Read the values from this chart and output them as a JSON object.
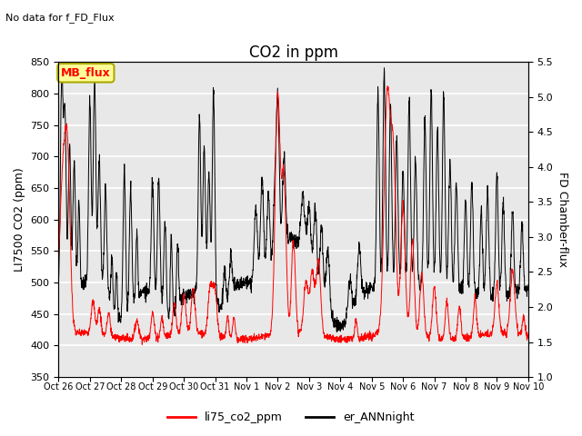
{
  "title": "CO2 in ppm",
  "subtitle": "No data for f_FD_Flux",
  "ylabel_left": "LI7500 CO2 (ppm)",
  "ylabel_right": "FD Chamber-flux",
  "ylim_left": [
    350,
    850
  ],
  "ylim_right": [
    1.0,
    5.5
  ],
  "yticks_left": [
    350,
    400,
    450,
    500,
    550,
    600,
    650,
    700,
    750,
    800,
    850
  ],
  "yticks_right": [
    1.0,
    1.5,
    2.0,
    2.5,
    3.0,
    3.5,
    4.0,
    4.5,
    5.0,
    5.5
  ],
  "x_tick_labels": [
    "Oct 26",
    "Oct 27",
    "Oct 28",
    "Oct 29",
    "Oct 30",
    "Oct 31",
    "Nov 1",
    "Nov 2",
    "Nov 3",
    "Nov 4",
    "Nov 5",
    "Nov 6",
    "Nov 7",
    "Nov 8",
    "Nov 9",
    "Nov 10"
  ],
  "legend_labels": [
    "li75_co2_ppm",
    "er_ANNnight"
  ],
  "legend_colors": [
    "red",
    "black"
  ],
  "line1_color": "red",
  "line2_color": "black",
  "annotation_box_text": "MB_flux",
  "annotation_box_color": "#ffff99",
  "annotation_box_edgecolor": "#aaaa00",
  "background_color": "#e8e8e8",
  "grid_color": "white",
  "title_fontsize": 12,
  "label_fontsize": 9
}
